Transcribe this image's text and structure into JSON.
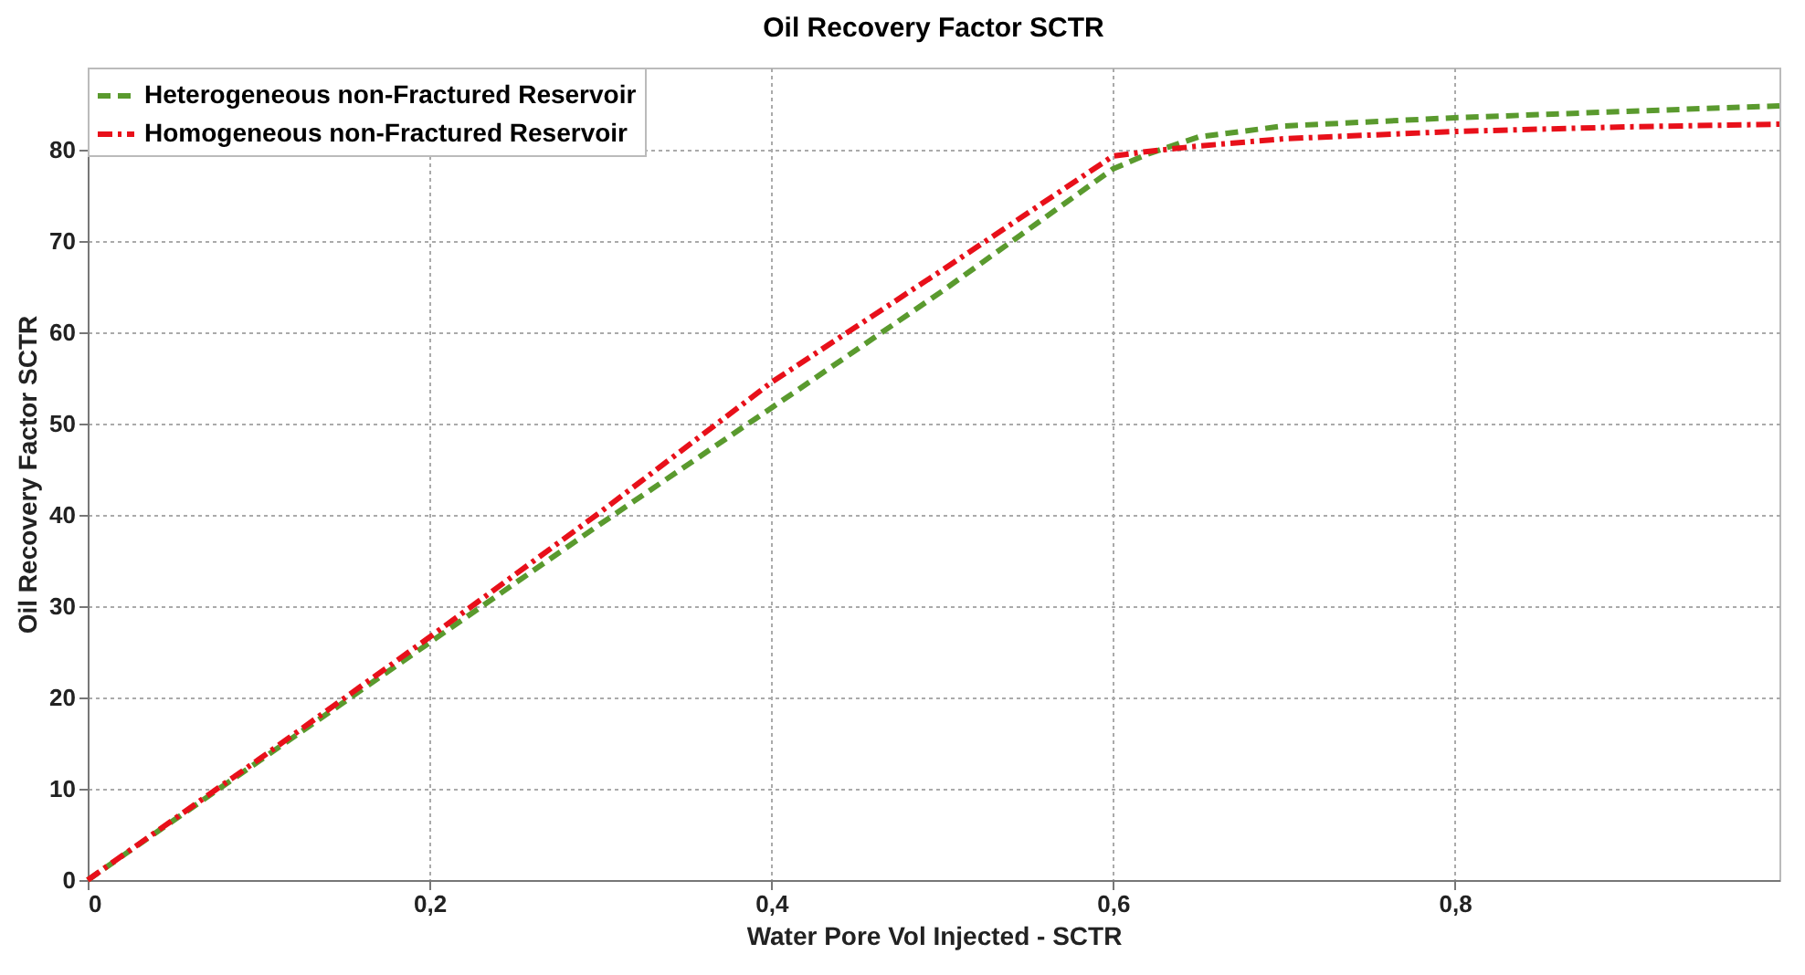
{
  "chart_data": {
    "type": "line",
    "title": "Oil Recovery Factor SCTR",
    "xlabel": "Water Pore Vol Injected - SCTR",
    "ylabel": "Oil Recovery Factor SCTR",
    "xlim": [
      0,
      0.99
    ],
    "xticks": [
      0,
      {
        "value": 0.2,
        "label": "0,2"
      },
      {
        "value": 0.4,
        "label": "0,4"
      },
      {
        "value": 0.6,
        "label": "0,6"
      },
      {
        "value": 0.8,
        "label": "0,8"
      }
    ],
    "ylim": [
      0,
      89
    ],
    "yticks": [
      0,
      10,
      20,
      30,
      40,
      50,
      60,
      70,
      80
    ],
    "grid": true,
    "legend": "top left",
    "marker": "none",
    "series": [
      {
        "name": "Heterogeneous non-Fractured Reservoir",
        "color": "#5a9a2e",
        "line_style": "dashed",
        "x": [
          0,
          0.1,
          0.2,
          0.3,
          0.4,
          0.5,
          0.6,
          0.62,
          0.65,
          0.7,
          0.8,
          0.9,
          0.99
        ],
        "values": [
          0,
          13,
          26,
          39,
          51.7,
          64.5,
          77.9,
          79.5,
          81.4,
          82.6,
          83.5,
          84.2,
          84.8
        ]
      },
      {
        "name": "Homogeneous non-Fractured Reservoir",
        "color": "#e8101a",
        "line_style": "dashdot",
        "x": [
          0,
          0.1,
          0.2,
          0.3,
          0.4,
          0.5,
          0.6,
          0.62,
          0.65,
          0.7,
          0.8,
          0.9,
          0.99
        ],
        "values": [
          0,
          13.2,
          26.6,
          40.3,
          54.5,
          66.8,
          79.3,
          79.8,
          80.4,
          81.2,
          82,
          82.5,
          82.8
        ]
      }
    ]
  }
}
